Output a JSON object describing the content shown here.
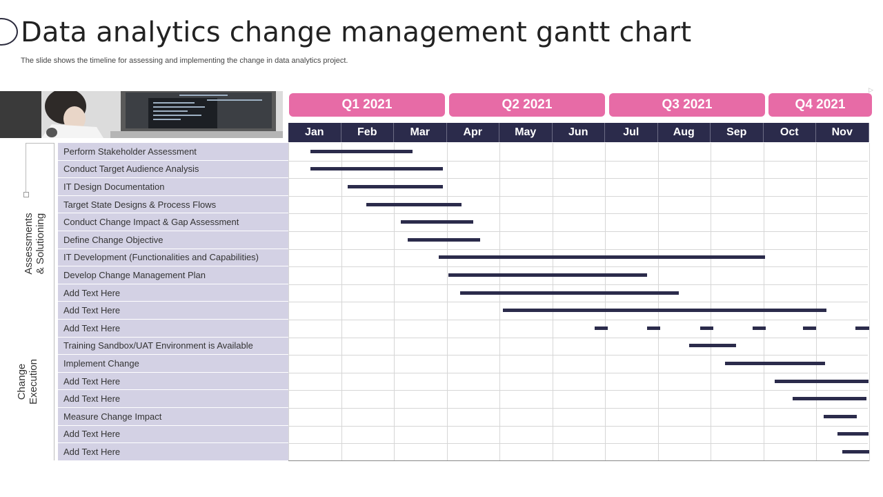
{
  "title": "Data analytics change management gantt chart",
  "subtitle": "The slide shows the timeline for assessing and implementing the change in data analytics project.",
  "quarters": [
    "Q1 2021",
    "Q2 2021",
    "Q3 2021",
    "Q4 2021"
  ],
  "months": [
    "Jan",
    "Feb",
    "Mar",
    "Apr",
    "May",
    "Jun",
    "Jul",
    "Aug",
    "Sep",
    "Oct",
    "Nov"
  ],
  "sections": [
    {
      "label_line1": "Assessments",
      "label_line2": "& Solutioning"
    },
    {
      "label_line1": "Change",
      "label_line2": "Execution"
    }
  ],
  "tasks": [
    {
      "label": "Perform Stakeholder Assessment",
      "start": 0.42,
      "end": 2.35
    },
    {
      "label": "Conduct Target Audience Analysis",
      "start": 0.42,
      "end": 2.93
    },
    {
      "label": "IT Design Documentation",
      "start": 1.13,
      "end": 2.93
    },
    {
      "label": "Target State Designs & Process Flows",
      "start": 1.48,
      "end": 3.28
    },
    {
      "label": "Conduct Change Impact & Gap Assessment",
      "start": 2.13,
      "end": 3.5
    },
    {
      "label": "Define Change Objective",
      "start": 2.26,
      "end": 3.63
    },
    {
      "label": "IT Development  (Functionalities and Capabilities)",
      "start": 2.85,
      "end": 9.03
    },
    {
      "label": "Develop Change Management Plan",
      "start": 3.03,
      "end": 6.8
    },
    {
      "label": "Add Text Here",
      "start": 3.25,
      "end": 7.4
    },
    {
      "label": "Add Text Here",
      "start": 4.07,
      "end": 10.2
    },
    {
      "label": "Add Text Here",
      "segments": [
        [
          5.8,
          6.05
        ],
        [
          6.8,
          7.05
        ],
        [
          7.8,
          8.05
        ],
        [
          8.8,
          9.05
        ],
        [
          9.75,
          10.0
        ],
        [
          10.75,
          11.0
        ]
      ]
    },
    {
      "label": "Training Sandbox/UAT Environment  is Available",
      "start": 7.6,
      "end": 8.48
    },
    {
      "label": "Implement Change",
      "start": 8.28,
      "end": 10.17
    },
    {
      "label": "Add Text Here",
      "start": 9.22,
      "end": 11.0
    },
    {
      "label": "Add Text Here",
      "start": 9.55,
      "end": 10.95
    },
    {
      "label": "Measure Change Impact",
      "start": 10.15,
      "end": 10.77
    },
    {
      "label": "Add Text Here",
      "start": 10.4,
      "end": 11.0
    },
    {
      "label": "Add Text Here",
      "start": 10.5,
      "end": 11.0
    }
  ],
  "colors": {
    "quarter": "#e76ba6",
    "month_header": "#2b2b4b",
    "task_bg": "#d3d1e4",
    "bar": "#2b2b4b"
  }
}
